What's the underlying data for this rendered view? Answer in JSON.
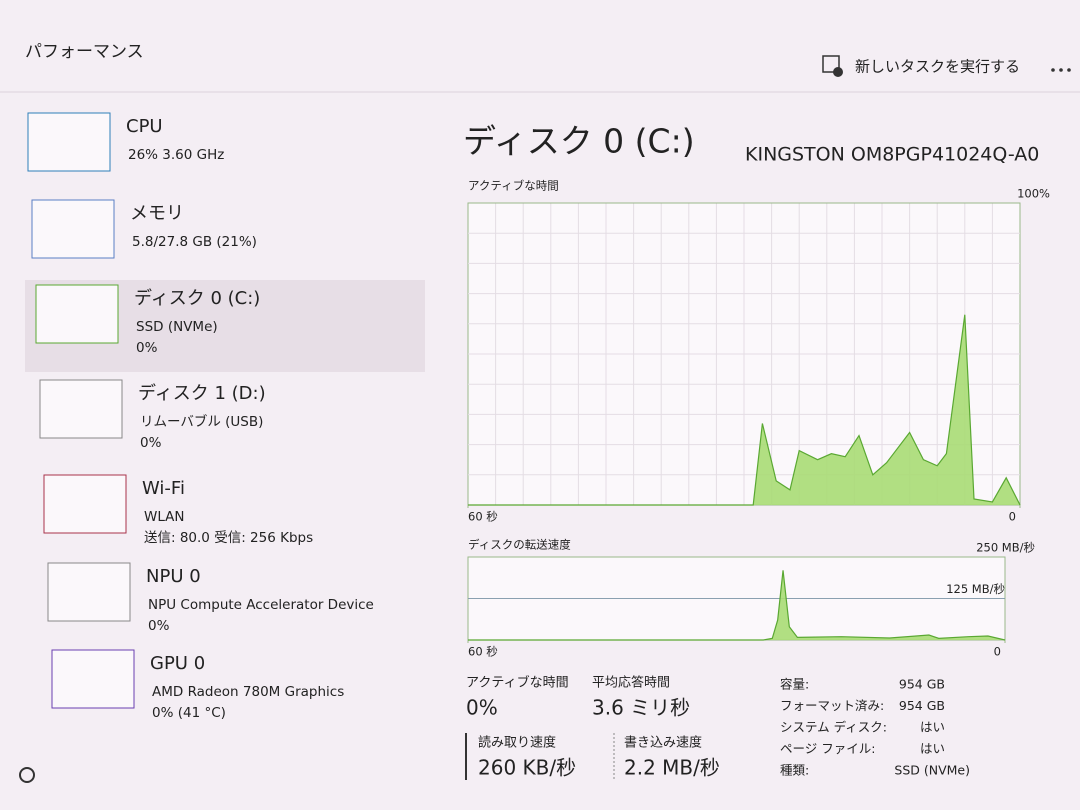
{
  "header": {
    "title": "パフォーマンス",
    "run_task": "新しいタスクを実行する"
  },
  "sidebar": [
    {
      "name": "CPU",
      "lines": [
        "26%  3.60 GHz"
      ]
    },
    {
      "name": "メモリ",
      "lines": [
        "5.8/27.8 GB (21%)"
      ]
    },
    {
      "name": "ディスク 0 (C:)",
      "lines": [
        "SSD (NVMe)",
        "0%"
      ]
    },
    {
      "name": "ディスク 1 (D:)",
      "lines": [
        "リムーバブル (USB)",
        "0%"
      ]
    },
    {
      "name": "Wi-Fi",
      "lines": [
        "WLAN",
        "送信: 80.0 受信: 256 Kbps"
      ]
    },
    {
      "name": "NPU 0",
      "lines": [
        "NPU Compute Accelerator Device",
        "0%"
      ]
    },
    {
      "name": "GPU 0",
      "lines": [
        "AMD Radeon 780M Graphics",
        "0% (41 °C)"
      ]
    }
  ],
  "main": {
    "title": "ディスク 0 (C:)",
    "model": "KINGSTON OM8PGP41024Q-A0"
  },
  "chart_data": [
    {
      "type": "area",
      "title": "アクティブな時間",
      "xlim": [
        60,
        0
      ],
      "xticks": [
        {
          "value": 60,
          "label": "60 秒"
        },
        0
      ],
      "ylim": [
        0,
        100
      ],
      "yticks": [
        {
          "value": 100,
          "label": "100%"
        }
      ],
      "series": [
        {
          "color": "#5aa832",
          "x": [
            60,
            29,
            28,
            26.5,
            25,
            24,
            22,
            20.5,
            19,
            17.5,
            16,
            14.5,
            12,
            10.5,
            9,
            8,
            6,
            5,
            3,
            1.5,
            0
          ],
          "values": [
            0,
            0,
            27,
            8,
            5,
            18,
            15,
            17,
            16,
            23,
            10,
            14,
            24,
            15,
            13,
            17,
            63,
            2,
            1,
            9,
            0
          ]
        }
      ]
    },
    {
      "type": "area",
      "title": "ディスクの転送速度",
      "xlim": [
        60,
        0
      ],
      "xticks": [
        {
          "value": 60,
          "label": "60 秒"
        },
        0
      ],
      "ylim": [
        0,
        250
      ],
      "yticks": [
        {
          "value": 250,
          "label": "250 MB/秒"
        },
        {
          "value": 125,
          "label": "125 MB/秒"
        }
      ],
      "series": [
        {
          "color": "#5aa832",
          "x": [
            60,
            27,
            26,
            25.4,
            24.8,
            24.1,
            23.2,
            18.3,
            12.9,
            8.5,
            7.4,
            4.1,
            1.9,
            0
          ],
          "values": [
            0,
            0,
            5,
            60,
            210,
            40,
            8,
            10,
            6,
            15,
            5,
            10,
            12,
            0
          ]
        }
      ]
    }
  ],
  "stats": [
    {
      "label": "アクティブな時間",
      "value": "0%"
    },
    {
      "label": "平均応答時間",
      "value": "3.6 ミリ秒"
    },
    {
      "label": "読み取り速度",
      "value": "260 KB/秒"
    },
    {
      "label": "書き込み速度",
      "value": "2.2 MB/秒"
    }
  ],
  "details": [
    {
      "label": "容量:",
      "value": "954 GB"
    },
    {
      "label": "フォーマット済み:",
      "value": "954 GB"
    },
    {
      "label": "システム ディスク:",
      "value": "はい"
    },
    {
      "label": "ページ ファイル:",
      "value": "はい"
    },
    {
      "label": "種類:",
      "value": "SSD (NVMe)"
    }
  ]
}
